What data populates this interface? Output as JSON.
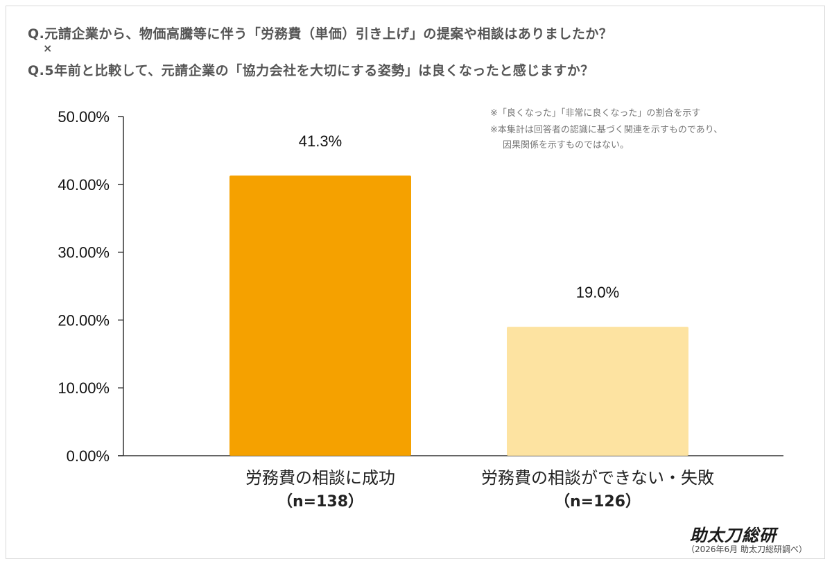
{
  "question": {
    "line1": "Q.元請企業から、物価高騰等に伴う「労務費（単価）引き上げ」の提案や相談はありましたか？",
    "cross": "×",
    "line2": "Q.5年前と比較して、元請企業の「協力会社を大切にする姿勢」は良くなったと感じますか？"
  },
  "notes": [
    "※「良くなった」「非常に良くなった」の割合を示す",
    "※本集計は回答者の認識に基づく関連を示すものであり、",
    "因果関係を示すものではない。"
  ],
  "brand": "助太刀総研",
  "source": "（2026年6月 助太刀総研調べ）",
  "colors": {
    "bar1": "#F5A100",
    "bar2": "#FDE3A1",
    "axis": "#333333"
  },
  "chart_data": {
    "type": "bar",
    "categories": [
      "労務費の相談に成功",
      "労務費の相談ができない・失敗"
    ],
    "category_n": [
      "（n=138）",
      "（n=126）"
    ],
    "values": [
      41.3,
      19.0
    ],
    "data_labels": [
      "41.3%",
      "19.0%"
    ],
    "ylim": [
      0,
      50
    ],
    "yticks": [
      0,
      10,
      20,
      30,
      40,
      50
    ],
    "ytick_labels": [
      "0.00%",
      "10.00%",
      "20.00%",
      "30.00%",
      "40.00%",
      "50.00%"
    ],
    "grid": false,
    "legend": "none"
  }
}
